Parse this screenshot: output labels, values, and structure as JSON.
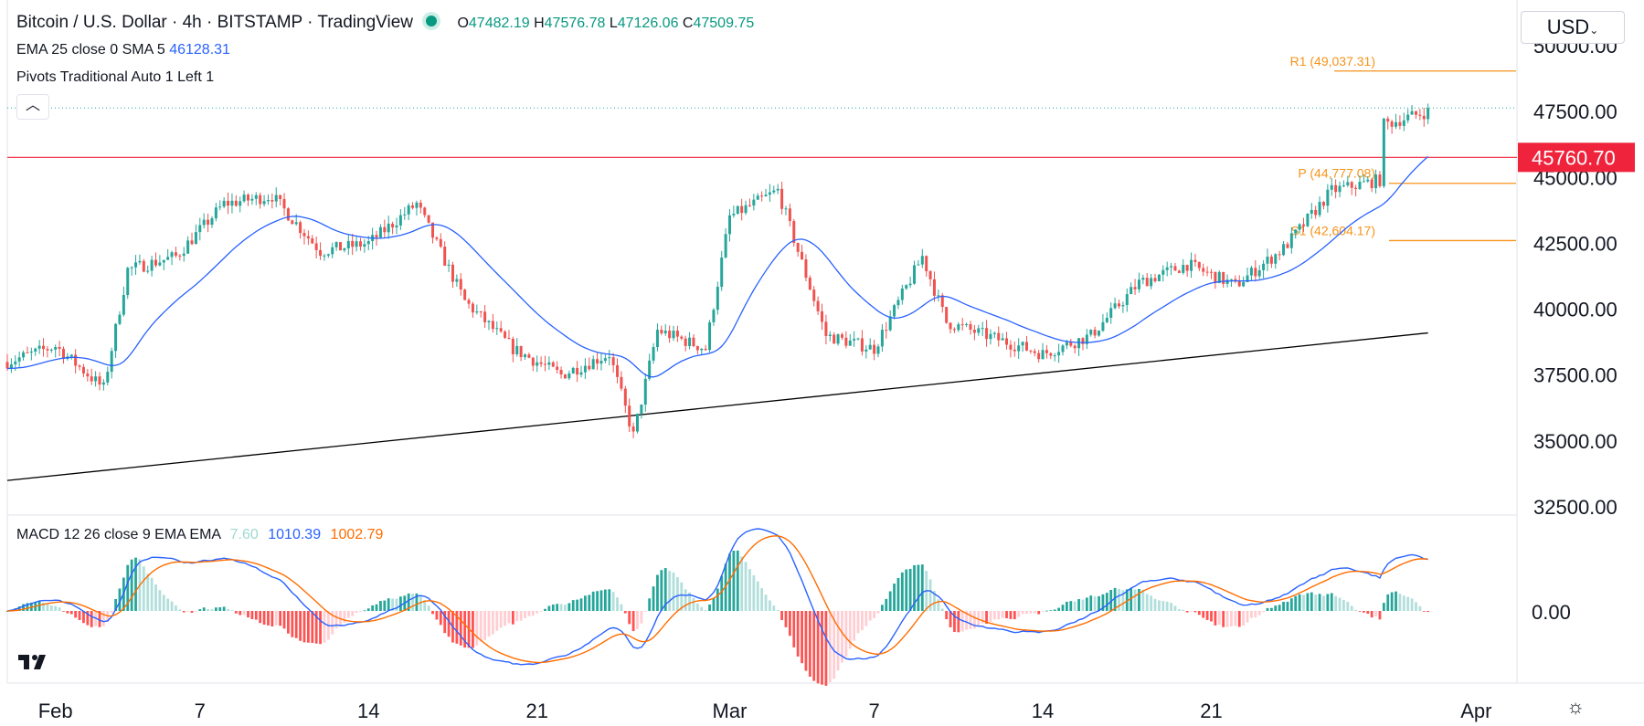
{
  "header": {
    "title": "Bitcoin / U.S. Dollar · 4h · BITSTAMP · TradingView",
    "ohlc": [
      {
        "k": "O",
        "v": "47482.19"
      },
      {
        "k": "H",
        "v": "47576.78"
      },
      {
        "k": "L",
        "v": "47126.06"
      },
      {
        "k": "C",
        "v": "47509.75"
      }
    ],
    "ema_line": "EMA 25 close 0 SMA 5",
    "ema_value": "46128.31",
    "pivots_line": "Pivots Traditional Auto 1 Left 1",
    "collapse_icon": "chevron-up-icon"
  },
  "currency_button": "USD",
  "macd_header": {
    "label": "MACD 12 26 close 9 EMA EMA",
    "v1": "7.60",
    "v2": "1010.39",
    "v3": "1002.79"
  },
  "colors": {
    "up": "#26a69a",
    "down": "#ef5350",
    "ema": "#2962ff",
    "pivot": "#f7931a",
    "horizontal_line": "#ef233c",
    "trendline": "#000000",
    "macd_line": "#2962ff",
    "signal_line": "#ff6d00"
  },
  "chart_data": [
    {
      "type": "candlestick",
      "symbol": "BTCUSD",
      "interval": "4h",
      "x_tick_labels": [
        "Feb",
        "7",
        "14",
        "21",
        "Mar",
        "7",
        "14",
        "21",
        "Apr"
      ],
      "y_tick_labels": [
        "50000.00",
        "47500.00",
        "45000.00",
        "42500.00",
        "40000.00",
        "37500.00",
        "35000.00",
        "32500.00"
      ],
      "ylim": [
        32500,
        50000
      ],
      "anchors": [
        {
          "date": "2022-01-30",
          "close": 38000
        },
        {
          "date": "2022-02-01",
          "close": 38600
        },
        {
          "date": "2022-02-03",
          "close": 37000
        },
        {
          "date": "2022-02-04",
          "close": 41500
        },
        {
          "date": "2022-02-06",
          "close": 42000
        },
        {
          "date": "2022-02-08",
          "close": 44000
        },
        {
          "date": "2022-02-10",
          "close": 44300
        },
        {
          "date": "2022-02-12",
          "close": 42200
        },
        {
          "date": "2022-02-14",
          "close": 42500
        },
        {
          "date": "2022-02-16",
          "close": 44000
        },
        {
          "date": "2022-02-18",
          "close": 40300
        },
        {
          "date": "2022-02-20",
          "close": 38500
        },
        {
          "date": "2022-02-22",
          "close": 37500
        },
        {
          "date": "2022-02-24",
          "close": 38300
        },
        {
          "date": "2022-02-25",
          "close": 35200
        },
        {
          "date": "2022-02-26",
          "close": 39200
        },
        {
          "date": "2022-02-28",
          "close": 38500
        },
        {
          "date": "2022-03-01",
          "close": 43500
        },
        {
          "date": "2022-03-03",
          "close": 44500
        },
        {
          "date": "2022-03-05",
          "close": 39000
        },
        {
          "date": "2022-03-07",
          "close": 38500
        },
        {
          "date": "2022-03-09",
          "close": 42000
        },
        {
          "date": "2022-03-10",
          "close": 39500
        },
        {
          "date": "2022-03-12",
          "close": 38900
        },
        {
          "date": "2022-03-14",
          "close": 38300
        },
        {
          "date": "2022-03-16",
          "close": 39000
        },
        {
          "date": "2022-03-18",
          "close": 41000
        },
        {
          "date": "2022-03-20",
          "close": 41700
        },
        {
          "date": "2022-03-22",
          "close": 40900
        },
        {
          "date": "2022-03-24",
          "close": 42300
        },
        {
          "date": "2022-03-26",
          "close": 44500
        },
        {
          "date": "2022-03-28",
          "close": 44900
        },
        {
          "date": "2022-03-28",
          "close": 47000
        },
        {
          "date": "2022-03-30",
          "close": 47500
        }
      ],
      "ema_last": 46128.31,
      "horizontal_line": {
        "value": 45760.7,
        "label": "45760.70"
      },
      "pivots": [
        {
          "label": "R1 (49,037.31)",
          "value": 49037.31
        },
        {
          "label": "P (44,777.08)",
          "value": 44777.08
        },
        {
          "label": "S1 (42,604.17)",
          "value": 42604.17
        }
      ],
      "trendline": {
        "from": {
          "date": "2022-01-30",
          "value": 33500
        },
        "to": {
          "date": "2022-03-30",
          "value": 39100
        }
      }
    },
    {
      "type": "macd",
      "params": "12 26 close 9 EMA EMA",
      "y_tick_labels": [
        "0.00"
      ],
      "histogram_last": 7.6,
      "macd_last": 1010.39,
      "signal_last": 1002.79
    }
  ]
}
